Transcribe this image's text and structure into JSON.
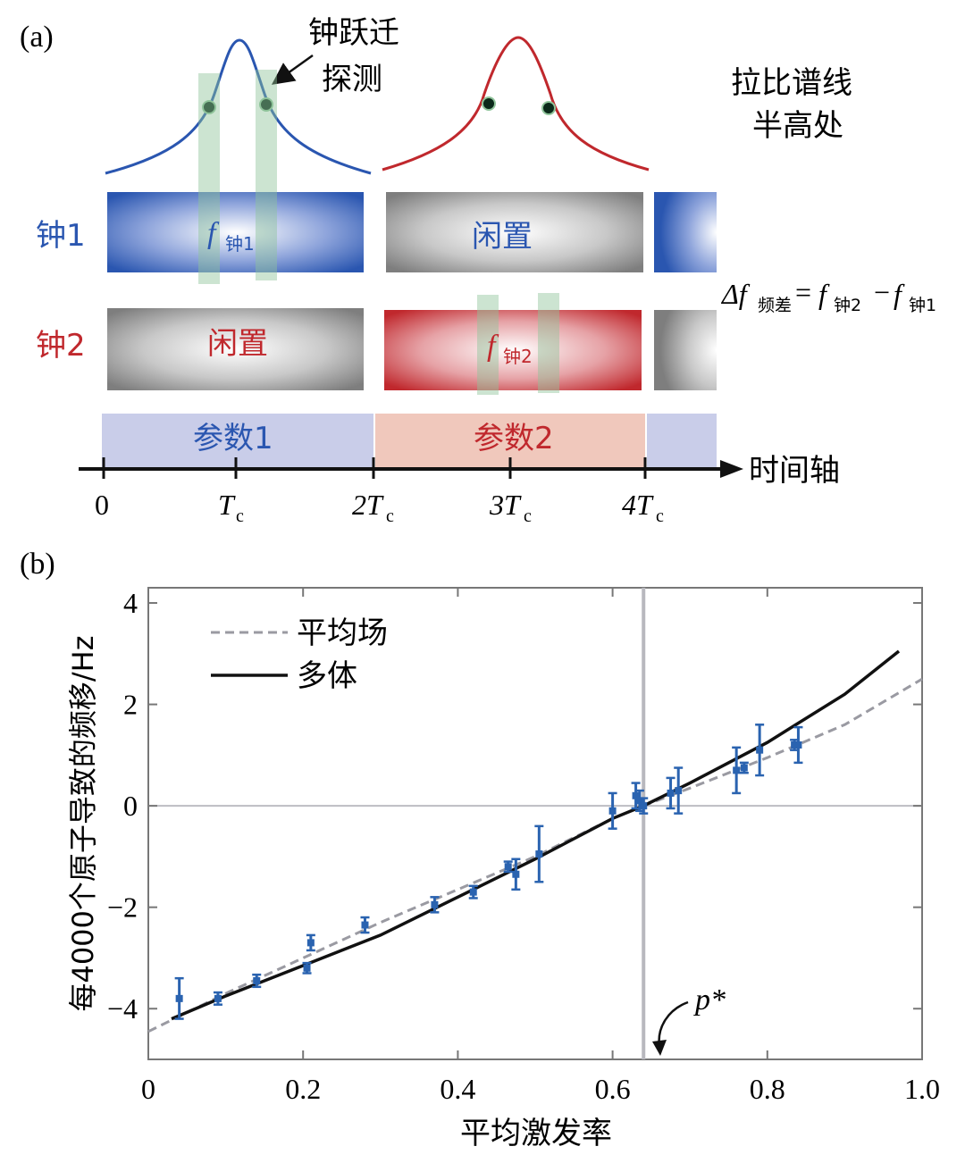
{
  "panel_a": {
    "label": "(a)",
    "probe_label_1": "钟跃迁",
    "probe_label_2": "探测",
    "ramsey_label_1": "拉比谱线",
    "ramsey_label_2": "半高处",
    "clock1_label": "钟1",
    "clock2_label": "钟2",
    "f_symbol": "f",
    "f_clock1_sub": "钟1",
    "f_clock2_sub": "钟2",
    "idle_label": "闲置",
    "delta_symbol": "Δf",
    "delta_sub": "频差",
    "equals": "=",
    "minus": "−",
    "param1_label": "参数1",
    "param2_label": "参数2",
    "time_axis_label": "时间轴",
    "time_ticks": [
      "0",
      "T",
      "2T",
      "3T",
      "4T"
    ],
    "tick_sub": "c",
    "colors": {
      "clock1": "#2a56b0",
      "clock2": "#c0282d",
      "idle": "#8a8a8a",
      "probe": "#8fc49a",
      "param1": "#c9cde9",
      "param2": "#f0c8bc"
    }
  },
  "panel_b": {
    "label": "(b)",
    "p_star": "p*"
  },
  "chart_data": {
    "type": "scatter",
    "xlabel": "平均激发率",
    "ylabel": "每4000个原子导致的频移/Hz",
    "xlim": [
      0.0,
      1.0
    ],
    "ylim": [
      -5.0,
      4.3
    ],
    "xticks": [
      "0",
      "0.2",
      "0.4",
      "0.6",
      "0.8",
      "1.0"
    ],
    "xtick_values": [
      0,
      0.2,
      0.4,
      0.6,
      0.8,
      1.0
    ],
    "yticks": [
      "4",
      "2",
      "0",
      "−2",
      "−4"
    ],
    "ytick_values": [
      4,
      2,
      0,
      -2,
      -4
    ],
    "vline_x": 0.64,
    "hline_y": 0,
    "legend_position": "top-left",
    "series": [
      {
        "name": "平均场",
        "style": "dashed",
        "color": "#9a9aa2",
        "x": [
          0.0,
          0.1,
          0.2,
          0.3,
          0.4,
          0.5,
          0.6,
          0.64,
          0.7,
          0.8,
          0.9,
          1.0
        ],
        "y": [
          -4.45,
          -3.7,
          -3.0,
          -2.3,
          -1.65,
          -1.0,
          -0.25,
          0.0,
          0.35,
          0.95,
          1.6,
          2.5
        ]
      },
      {
        "name": "多体",
        "style": "solid",
        "color": "#111111",
        "x": [
          0.03,
          0.1,
          0.2,
          0.3,
          0.4,
          0.5,
          0.6,
          0.64,
          0.7,
          0.8,
          0.9,
          0.97
        ],
        "y": [
          -4.2,
          -3.75,
          -3.15,
          -2.55,
          -1.8,
          -1.05,
          -0.25,
          0.0,
          0.45,
          1.25,
          2.2,
          3.05
        ]
      },
      {
        "name": "",
        "style": "points",
        "color": "#2a63b0",
        "x": [
          0.04,
          0.09,
          0.14,
          0.205,
          0.21,
          0.28,
          0.37,
          0.42,
          0.465,
          0.475,
          0.505,
          0.6,
          0.63,
          0.635,
          0.64,
          0.675,
          0.685,
          0.76,
          0.77,
          0.79,
          0.835,
          0.84
        ],
        "y": [
          -3.8,
          -3.8,
          -3.45,
          -3.2,
          -2.7,
          -2.35,
          -1.95,
          -1.7,
          -1.2,
          -1.35,
          -0.95,
          -0.1,
          0.2,
          0.1,
          0.0,
          0.25,
          0.3,
          0.7,
          0.75,
          1.1,
          1.2,
          1.2
        ],
        "err": [
          0.4,
          0.12,
          0.12,
          0.1,
          0.15,
          0.15,
          0.15,
          0.12,
          0.1,
          0.3,
          0.55,
          0.35,
          0.25,
          0.2,
          0.15,
          0.3,
          0.45,
          0.45,
          0.1,
          0.5,
          0.1,
          0.35
        ]
      }
    ]
  }
}
